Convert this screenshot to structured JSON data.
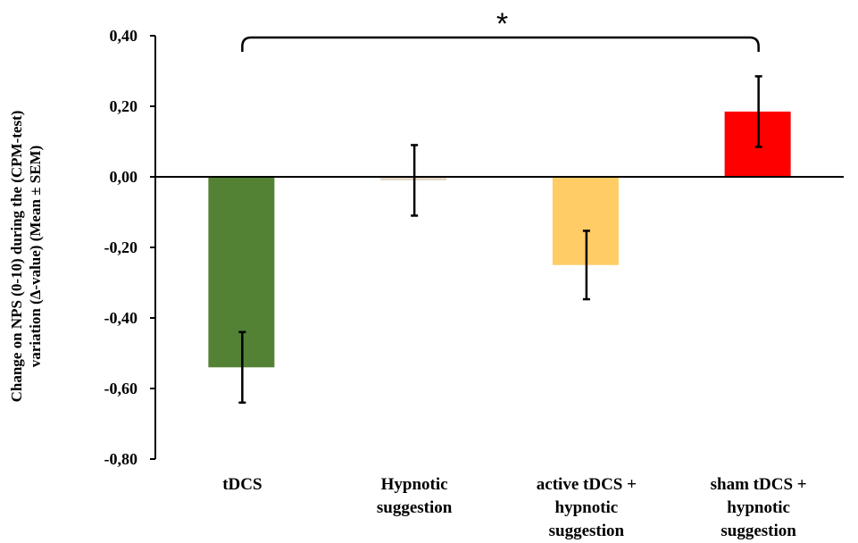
{
  "chart_data": {
    "type": "bar",
    "categories": [
      [
        "tDCS"
      ],
      [
        "Hypnotic",
        "suggestion"
      ],
      [
        "active tDCS +",
        "hypnotic",
        "suggestion"
      ],
      [
        "sham tDCS +",
        "hypnotic",
        "suggestion"
      ]
    ],
    "values": [
      -0.54,
      -0.01,
      -0.25,
      0.185
    ],
    "errors": [
      0.1,
      0.1,
      0.097,
      0.1
    ],
    "colors": [
      "#548235",
      "#e2d6c6",
      "#ffcc66",
      "#ff0000"
    ],
    "ylabel": [
      "Change on NPS (0-10) during the (CPM-test)",
      "variation  (Δ-value)  (Mean ± SEM)"
    ],
    "ylim": [
      -0.8,
      0.4
    ],
    "yticks": [
      0.4,
      0.2,
      0.0,
      -0.2,
      -0.4,
      -0.6,
      -0.8
    ],
    "ytick_labels": [
      "0,40",
      "0,20",
      "0,00",
      "-0,20",
      "-0,40",
      "-0,60",
      "-0,80"
    ],
    "grid": false,
    "legend": "none",
    "annotation": {
      "text": "*",
      "from_category": 0,
      "to_category": 3
    }
  }
}
